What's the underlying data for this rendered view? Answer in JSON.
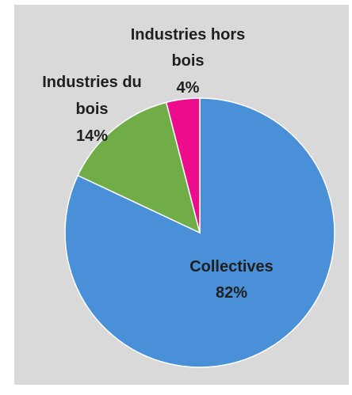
{
  "chart_data": {
    "type": "pie",
    "title": "",
    "slices": [
      {
        "name_lines": [
          "Collectives"
        ],
        "percent_label": "82%",
        "value": 82,
        "color": "#4a90d9"
      },
      {
        "name_lines": [
          "Industries du",
          "bois"
        ],
        "percent_label": "14%",
        "value": 14,
        "color": "#70ad47"
      },
      {
        "name_lines": [
          "Industries hors",
          "bois"
        ],
        "percent_label": "4%",
        "value": 4,
        "color": "#ec0c8c"
      }
    ],
    "start_angle": "12 o'clock",
    "direction": "clockwise",
    "legend": "none"
  }
}
